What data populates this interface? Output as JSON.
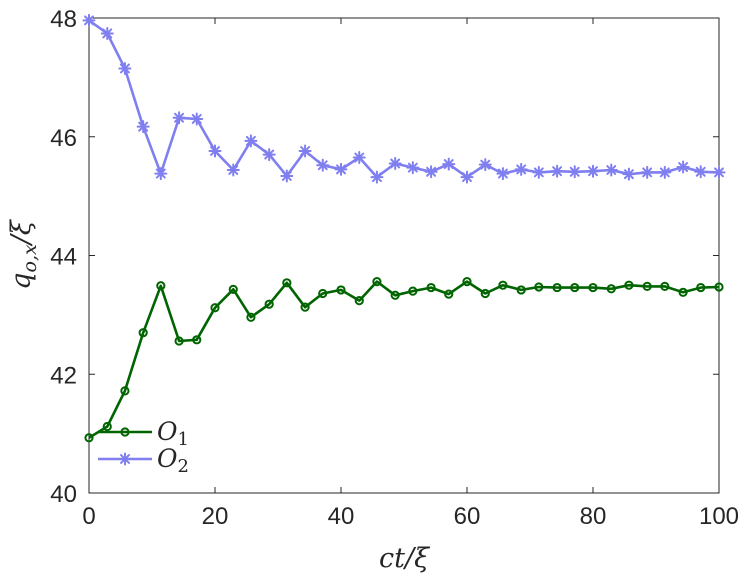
{
  "chart_data": {
    "type": "line",
    "xlabel": "ct/ξ",
    "ylabel": "q_{o,x}/ξ",
    "xlim": [
      0,
      100
    ],
    "ylim": [
      40,
      48
    ],
    "xticks": [
      "0",
      "20",
      "40",
      "60",
      "80",
      "100"
    ],
    "yticks": [
      "40",
      "42",
      "44",
      "46",
      "48"
    ],
    "grid": false,
    "legend_position": "bottom-left",
    "series": [
      {
        "name": "O1",
        "name_base": "O",
        "name_sub": "1",
        "color": "#006400",
        "marker": "circle",
        "x": [
          0.0,
          2.9,
          5.7,
          8.6,
          11.4,
          14.3,
          17.1,
          20.0,
          22.9,
          25.7,
          28.6,
          31.4,
          34.3,
          37.1,
          40.0,
          42.9,
          45.7,
          48.6,
          51.4,
          54.3,
          57.1,
          60.0,
          62.9,
          65.7,
          68.6,
          71.4,
          74.3,
          77.1,
          80.0,
          82.9,
          85.7,
          88.6,
          91.4,
          94.3,
          97.1,
          100.0
        ],
        "y": [
          40.93,
          41.12,
          41.72,
          42.7,
          43.49,
          42.56,
          42.58,
          43.12,
          43.43,
          42.96,
          43.18,
          43.54,
          43.13,
          43.36,
          43.42,
          43.24,
          43.56,
          43.33,
          43.4,
          43.46,
          43.35,
          43.56,
          43.36,
          43.5,
          43.42,
          43.47,
          43.46,
          43.46,
          43.46,
          43.44,
          43.5,
          43.48,
          43.48,
          43.38,
          43.46,
          43.47
        ]
      },
      {
        "name": "O2",
        "name_base": "O",
        "name_sub": "2",
        "color": "#7f7ff0",
        "marker": "asterisk",
        "x": [
          0.0,
          2.9,
          5.7,
          8.6,
          11.4,
          14.3,
          17.1,
          20.0,
          22.9,
          25.7,
          28.6,
          31.4,
          34.3,
          37.1,
          40.0,
          42.9,
          45.7,
          48.6,
          51.4,
          54.3,
          57.1,
          60.0,
          62.9,
          65.7,
          68.6,
          71.4,
          74.3,
          77.1,
          80.0,
          82.9,
          85.7,
          88.6,
          91.4,
          94.3,
          97.1,
          100.0
        ],
        "y": [
          47.96,
          47.74,
          47.15,
          46.17,
          45.38,
          46.32,
          46.3,
          45.76,
          45.44,
          45.93,
          45.7,
          45.34,
          45.76,
          45.52,
          45.45,
          45.65,
          45.32,
          45.55,
          45.48,
          45.41,
          45.54,
          45.32,
          45.53,
          45.38,
          45.45,
          45.4,
          45.42,
          45.41,
          45.42,
          45.44,
          45.37,
          45.4,
          45.4,
          45.49,
          45.41,
          45.4
        ]
      }
    ]
  }
}
